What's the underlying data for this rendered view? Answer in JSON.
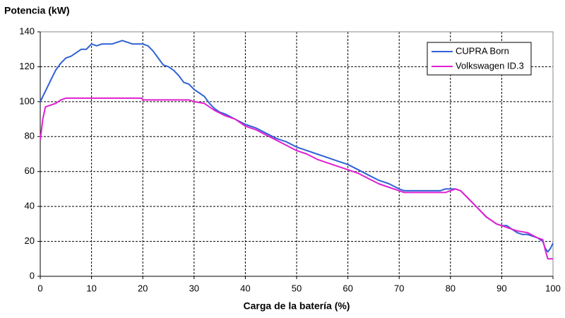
{
  "chart_data": {
    "type": "line",
    "title": "Potencia (kW)",
    "x_label": "Carga de la batería (%)",
    "xlim": [
      0,
      100
    ],
    "xticks": [
      0,
      10,
      20,
      30,
      40,
      50,
      60,
      70,
      80,
      90,
      100
    ],
    "ylim": [
      0,
      140
    ],
    "yticks": [
      0,
      20,
      40,
      60,
      80,
      100,
      120,
      140
    ],
    "grid": true,
    "legend": "upper right",
    "series": [
      {
        "name": "CUPRA Born",
        "color": "#2f62d6",
        "x": [
          0,
          1,
          2,
          3,
          4,
          5,
          6,
          7,
          8,
          9,
          10,
          11,
          12,
          14,
          15,
          16,
          17,
          18,
          20,
          21,
          22,
          23,
          24,
          25,
          26,
          27,
          28,
          29,
          30,
          31,
          32,
          33,
          34,
          35,
          36,
          38,
          40,
          42,
          44,
          46,
          48,
          50,
          52,
          54,
          56,
          58,
          60,
          62,
          64,
          66,
          68,
          70,
          71,
          75,
          78,
          79,
          81,
          82,
          83,
          84,
          85,
          86,
          87,
          88,
          89,
          90,
          91,
          92,
          93,
          94,
          95,
          96,
          97,
          98,
          98.5,
          99,
          99.5,
          100
        ],
        "values": [
          100,
          106,
          112,
          118,
          122,
          125,
          126,
          128,
          130,
          130,
          133,
          132,
          133,
          133,
          134,
          135,
          134,
          133,
          133,
          132,
          129,
          125,
          121,
          120,
          118,
          115,
          111,
          110,
          107,
          105,
          103,
          99,
          96,
          94,
          93,
          90,
          87,
          85,
          82,
          79,
          77,
          74,
          72,
          70,
          68,
          66,
          64,
          61,
          58,
          55,
          53,
          50,
          49,
          49,
          49,
          50,
          50,
          49,
          46,
          43,
          40,
          37,
          34,
          32,
          30,
          29,
          29,
          27,
          25,
          24,
          24,
          23,
          22,
          20,
          16,
          14,
          16,
          19
        ]
      },
      {
        "name": "Volkswagen ID.3",
        "color": "#e020d0",
        "x": [
          0,
          0.5,
          1,
          2,
          3,
          4,
          5,
          10,
          15,
          19.8,
          20,
          25,
          29,
          30,
          32,
          33,
          34,
          36,
          38,
          40,
          42,
          44,
          46,
          48,
          50,
          52,
          54,
          56,
          58,
          60,
          62,
          64,
          66,
          68,
          70,
          71,
          75,
          78,
          79,
          80,
          81,
          82,
          83,
          85,
          87,
          88,
          89,
          90,
          91,
          92,
          93,
          95,
          97,
          98,
          98.5,
          99,
          99.5,
          100
        ],
        "values": [
          78,
          90,
          97,
          98,
          99,
          101,
          102,
          102,
          102,
          102,
          101,
          101,
          101,
          100,
          99,
          97,
          95,
          92,
          90,
          86,
          84,
          81,
          78,
          75,
          72,
          70,
          67,
          65,
          63,
          61,
          59,
          56,
          53,
          51,
          49,
          48,
          48,
          48,
          48,
          49,
          50,
          49,
          46,
          40,
          34,
          32,
          30,
          29,
          28,
          27,
          26,
          25,
          22,
          21,
          15,
          10,
          10,
          10
        ]
      }
    ]
  }
}
